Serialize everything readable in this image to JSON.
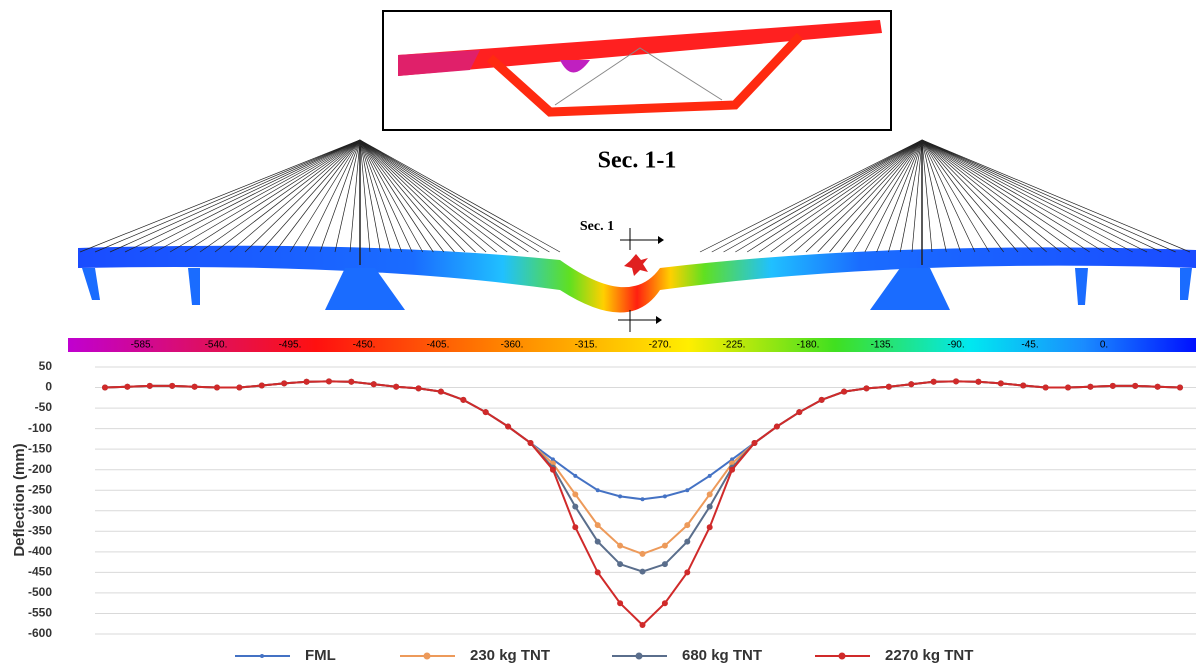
{
  "figure": {
    "section_title": "Sec. 1-1",
    "section_label": "Sec. 1",
    "colorbar_labels": [
      "-585.",
      "-540.",
      "-495.",
      "-450.",
      "-405.",
      "-360.",
      "-315.",
      "-270.",
      "-225.",
      "-180.",
      "-135.",
      "-90.",
      "-45.",
      "0."
    ]
  },
  "chart_data": {
    "type": "line",
    "y_label": "Deflection (mm)",
    "categories": [
      null,
      null,
      null,
      null,
      null,
      null,
      null,
      null,
      null,
      null,
      null,
      null,
      null,
      null,
      null,
      null,
      null,
      null,
      null,
      null,
      null,
      null,
      null,
      null,
      null,
      null,
      null,
      null,
      null,
      null,
      null,
      null,
      null,
      null,
      null,
      null,
      null,
      null,
      null,
      null,
      null,
      null,
      null,
      null,
      null,
      null,
      null,
      null,
      null
    ],
    "ylim": [
      -600,
      50
    ],
    "yticks": [
      50,
      0,
      -50,
      -100,
      -150,
      -200,
      -250,
      -300,
      -350,
      -400,
      -450,
      -500,
      -550,
      -600
    ],
    "grid": true,
    "legend": "bottom",
    "series": [
      {
        "name": "FML",
        "color": "#4472c4",
        "values": [
          0,
          2,
          4,
          4,
          2,
          0,
          0,
          5,
          10,
          14,
          15,
          14,
          8,
          2,
          -2,
          -10,
          -30,
          -60,
          -95,
          -135,
          -175,
          -215,
          -250,
          -265,
          -272,
          -265,
          -250,
          -215,
          -175,
          -135,
          -95,
          -60,
          -30,
          -10,
          -2,
          2,
          8,
          14,
          15,
          14,
          10,
          5,
          0,
          0,
          2,
          4,
          4,
          2,
          0
        ]
      },
      {
        "name": "230 kg TNT",
        "color": "#ed9a5a",
        "values": [
          0,
          2,
          4,
          4,
          2,
          0,
          0,
          5,
          10,
          14,
          15,
          14,
          8,
          2,
          -2,
          -10,
          -30,
          -60,
          -95,
          -135,
          -185,
          -260,
          -335,
          -385,
          -405,
          -385,
          -335,
          -260,
          -185,
          -135,
          -95,
          -60,
          -30,
          -10,
          -2,
          2,
          8,
          14,
          15,
          14,
          10,
          5,
          0,
          0,
          2,
          4,
          4,
          2,
          0
        ]
      },
      {
        "name": "680 kg TNT",
        "color": "#5a6e8c",
        "values": [
          0,
          2,
          4,
          4,
          2,
          0,
          0,
          5,
          10,
          14,
          15,
          14,
          8,
          2,
          -2,
          -10,
          -30,
          -60,
          -95,
          -135,
          -195,
          -290,
          -375,
          -430,
          -448,
          -430,
          -375,
          -290,
          -195,
          -135,
          -95,
          -60,
          -30,
          -10,
          -2,
          2,
          8,
          14,
          15,
          14,
          10,
          5,
          0,
          0,
          2,
          4,
          4,
          2,
          0
        ]
      },
      {
        "name": "2270 kg TNT",
        "color": "#d02a2a",
        "values": [
          0,
          2,
          4,
          4,
          2,
          0,
          0,
          5,
          10,
          14,
          15,
          14,
          8,
          2,
          -2,
          -10,
          -30,
          -60,
          -95,
          -135,
          -200,
          -340,
          -450,
          -525,
          -578,
          -525,
          -450,
          -340,
          -200,
          -135,
          -95,
          -60,
          -30,
          -10,
          -2,
          2,
          8,
          14,
          15,
          14,
          10,
          5,
          0,
          0,
          2,
          4,
          4,
          2,
          0
        ]
      }
    ]
  }
}
